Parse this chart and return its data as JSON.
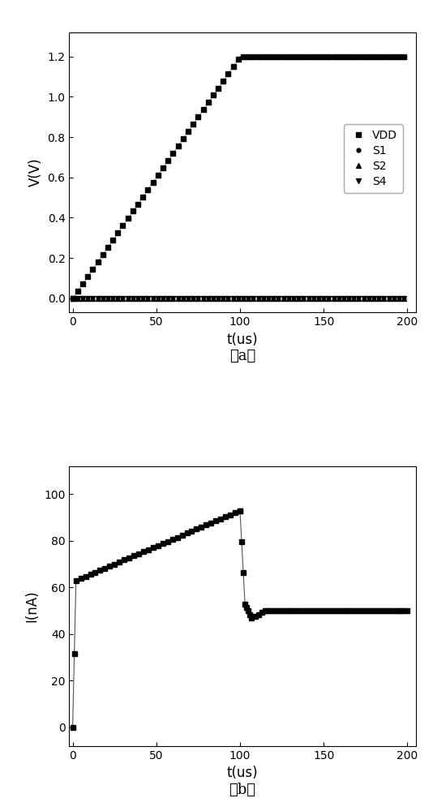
{
  "fig_width": 5.34,
  "fig_height": 10.0,
  "dpi": 100,
  "background_color": "#ffffff",
  "plot_a": {
    "xlabel": "t(us)",
    "ylabel": "V(V)",
    "xlim": [
      -2,
      205
    ],
    "ylim": [
      -0.07,
      1.32
    ],
    "yticks": [
      0.0,
      0.2,
      0.4,
      0.6,
      0.8,
      1.0,
      1.2
    ],
    "xticks": [
      0,
      50,
      100,
      150,
      200
    ],
    "label": "（a）",
    "legend_entries": [
      "VDD",
      "S1",
      "S2",
      "S4"
    ],
    "legend_markers": [
      "s",
      "o",
      "^",
      "v"
    ],
    "line_color": "#aaaaaa",
    "marker_color": "#000000"
  },
  "plot_b": {
    "xlabel": "t(us)",
    "ylabel": "I(nA)",
    "xlim": [
      -2,
      205
    ],
    "ylim": [
      -8,
      112
    ],
    "yticks": [
      0,
      20,
      40,
      60,
      80,
      100
    ],
    "xticks": [
      0,
      50,
      100,
      150,
      200
    ],
    "label": "（b）",
    "line_color": "#555555",
    "marker_color": "#000000"
  },
  "font_size_label": 12,
  "font_size_tick": 10,
  "font_size_legend": 10,
  "font_size_caption": 13,
  "marker_size": 4,
  "line_width": 0.8
}
